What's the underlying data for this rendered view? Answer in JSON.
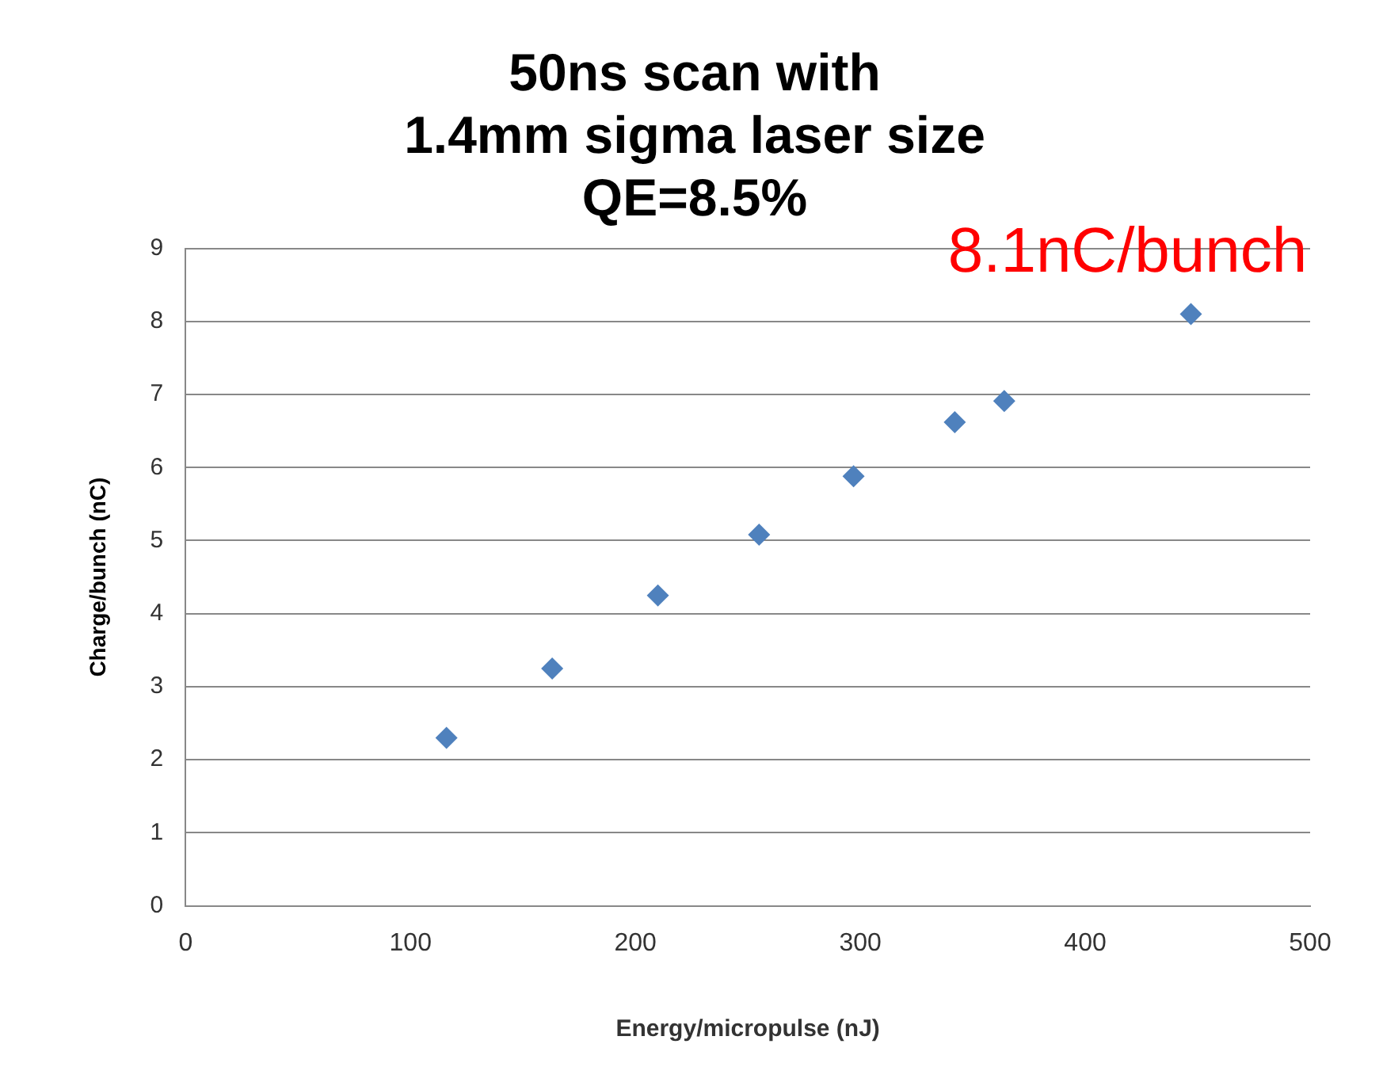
{
  "chart_data": {
    "type": "scatter",
    "title": "50ns scan with\n1.4mm sigma laser size\nQE=8.5%",
    "xlabel": "Energy/micropulse (nJ)",
    "ylabel": "Charge/bunch (nC)",
    "x": [
      116,
      163,
      210,
      255,
      297,
      342,
      364,
      447
    ],
    "series": [
      {
        "color": "#4f81bd",
        "values": [
          2.3,
          3.25,
          4.25,
          5.08,
          5.88,
          6.62,
          6.91,
          8.1
        ]
      }
    ],
    "xlim": [
      0,
      500
    ],
    "xticks": [
      0,
      100,
      200,
      300,
      400,
      500
    ],
    "ylim": [
      0,
      9
    ],
    "yticks": [
      0,
      1,
      2,
      3,
      4,
      5,
      6,
      7,
      8,
      9
    ],
    "grid": "y",
    "legend": false,
    "marker": "diamond",
    "annotations": [
      {
        "text": "8.1nC/bunch",
        "x": 447,
        "y": 8.1
      }
    ]
  }
}
